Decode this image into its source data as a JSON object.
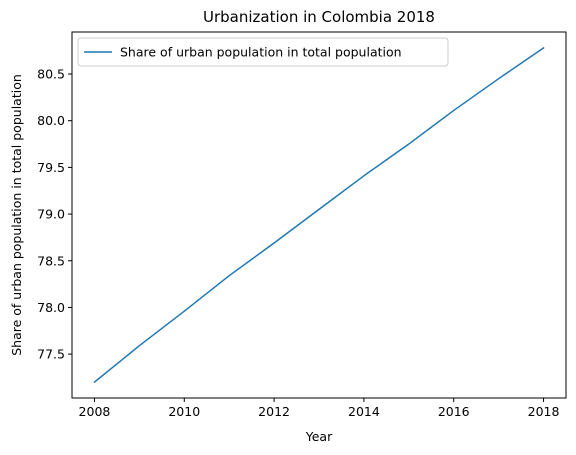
{
  "chart_data": {
    "type": "line",
    "title": "Urbanization in Colombia 2018",
    "xlabel": "Year",
    "ylabel": "Share of urban population in total population",
    "xlim": [
      2007.5,
      2018.5
    ],
    "ylim": [
      77.03,
      80.95
    ],
    "x_ticks": [
      2008,
      2010,
      2012,
      2014,
      2016,
      2018
    ],
    "y_ticks": [
      77.5,
      78.0,
      78.5,
      79.0,
      79.5,
      80.0,
      80.5
    ],
    "grid": false,
    "legend_position": "top-left",
    "series": [
      {
        "name": "Share of urban population in total population",
        "color": "#1f77b4",
        "x": [
          2008,
          2009,
          2010,
          2011,
          2012,
          2013,
          2014,
          2015,
          2016,
          2017,
          2018
        ],
        "y": [
          77.2,
          77.59,
          77.96,
          78.34,
          78.69,
          79.05,
          79.41,
          79.75,
          80.11,
          80.45,
          80.78
        ]
      }
    ]
  }
}
